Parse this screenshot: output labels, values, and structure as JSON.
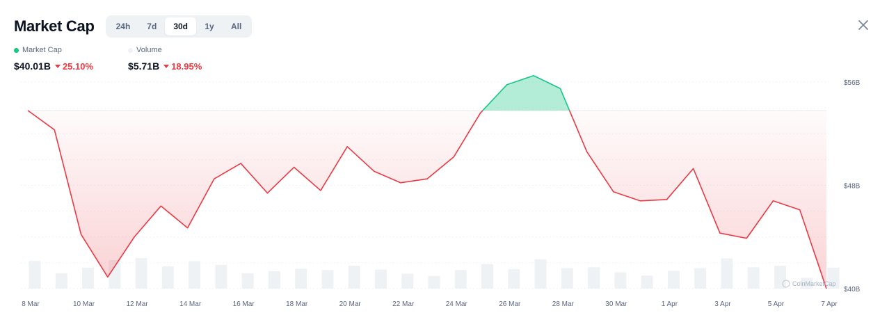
{
  "header": {
    "title": "Market Cap",
    "tabs": [
      {
        "label": "24h",
        "active": false
      },
      {
        "label": "7d",
        "active": false
      },
      {
        "label": "30d",
        "active": true
      },
      {
        "label": "1y",
        "active": false
      },
      {
        "label": "All",
        "active": false
      }
    ],
    "close_icon": "close-icon"
  },
  "legend": {
    "market_cap": {
      "label": "Market Cap",
      "value": "$40.01B",
      "change": "25.10%",
      "color": "#16c784"
    },
    "volume": {
      "label": "Volume",
      "value": "$5.71B",
      "change": "18.95%",
      "color": "#eff2f5"
    }
  },
  "watermark": "CoinMarketCap",
  "colors": {
    "up": "#16c784",
    "down": "#ea3943",
    "volume_bar": "#eff2f5",
    "grid": "#eff2f5",
    "baseline_ref": "#e8ebf0"
  },
  "chart_data": {
    "type": "line",
    "series": [
      {
        "name": "Market Cap",
        "unit": "$B",
        "values": [
          53.8,
          52.3,
          44.2,
          40.9,
          44.0,
          46.4,
          44.7,
          48.5,
          49.7,
          47.4,
          49.4,
          47.6,
          51.0,
          49.1,
          48.2,
          48.5,
          50.2,
          53.6,
          55.8,
          56.5,
          55.5,
          50.6,
          47.5,
          46.8,
          46.9,
          49.3,
          44.3,
          43.9,
          46.8,
          46.1,
          40.0
        ]
      },
      {
        "name": "Volume",
        "relative_values": [
          0.7,
          0.39,
          0.53,
          0.72,
          0.77,
          0.56,
          0.69,
          0.6,
          0.39,
          0.44,
          0.5,
          0.47,
          0.58,
          0.48,
          0.38,
          0.32,
          0.47,
          0.62,
          0.49,
          0.74,
          0.52,
          0.54,
          0.41,
          0.33,
          0.45,
          0.52,
          0.76,
          0.54,
          0.58,
          0.27,
          0.53
        ]
      }
    ],
    "x_tick_labels": [
      "8 Mar",
      "10 Mar",
      "12 Mar",
      "14 Mar",
      "16 Mar",
      "18 Mar",
      "20 Mar",
      "22 Mar",
      "24 Mar",
      "26 Mar",
      "28 Mar",
      "30 Mar",
      "1 Apr",
      "3 Apr",
      "5 Apr",
      "7 Apr"
    ],
    "y_ticks": [
      {
        "value": 40,
        "label": "$40B"
      },
      {
        "value": 48,
        "label": "$48B"
      },
      {
        "value": 56,
        "label": "$56B"
      }
    ],
    "ylim": [
      40,
      56
    ],
    "reference_value": 53.8,
    "grid": true
  }
}
